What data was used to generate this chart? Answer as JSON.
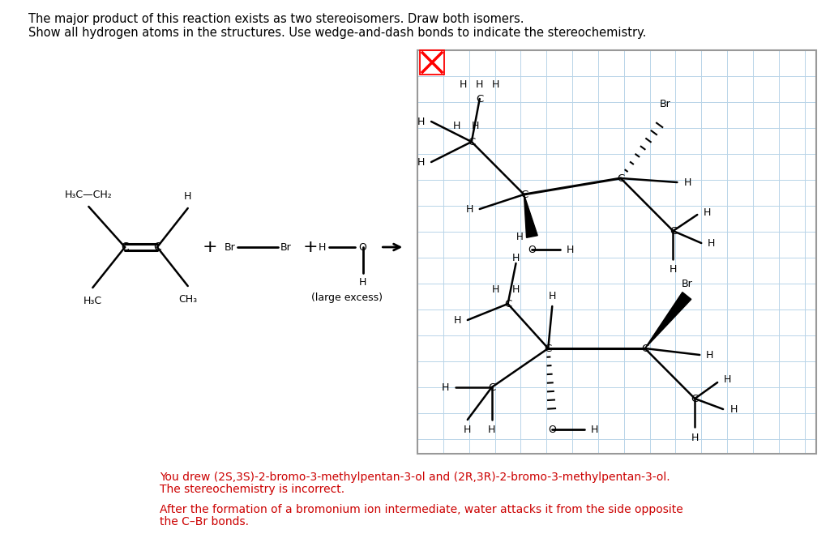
{
  "title_line1": "The major product of this reaction exists as two stereoisomers. Draw both isomers.",
  "title_line2": "Show all hydrogen atoms in the structures. Use wedge-and-dash bonds to indicate the stereochemistry.",
  "title_fontsize": 10.5,
  "title_color": "#000000",
  "bg_color": "#ffffff",
  "grid_color": "#b8d4e8",
  "feedback_line1": "You drew (2S,3S)-2-bromo-3-methylpentan-3-ol and (2R,3R)-2-bromo-3-methylpentan-3-ol.",
  "feedback_line2": "The stereochemistry is incorrect.",
  "feedback_line3": "After the formation of a bromonium ion intermediate, water attacks it from the side opposite",
  "feedback_line4": "the C–Br bonds.",
  "feedback_color": "#cc0000",
  "feedback_fontsize": 10
}
